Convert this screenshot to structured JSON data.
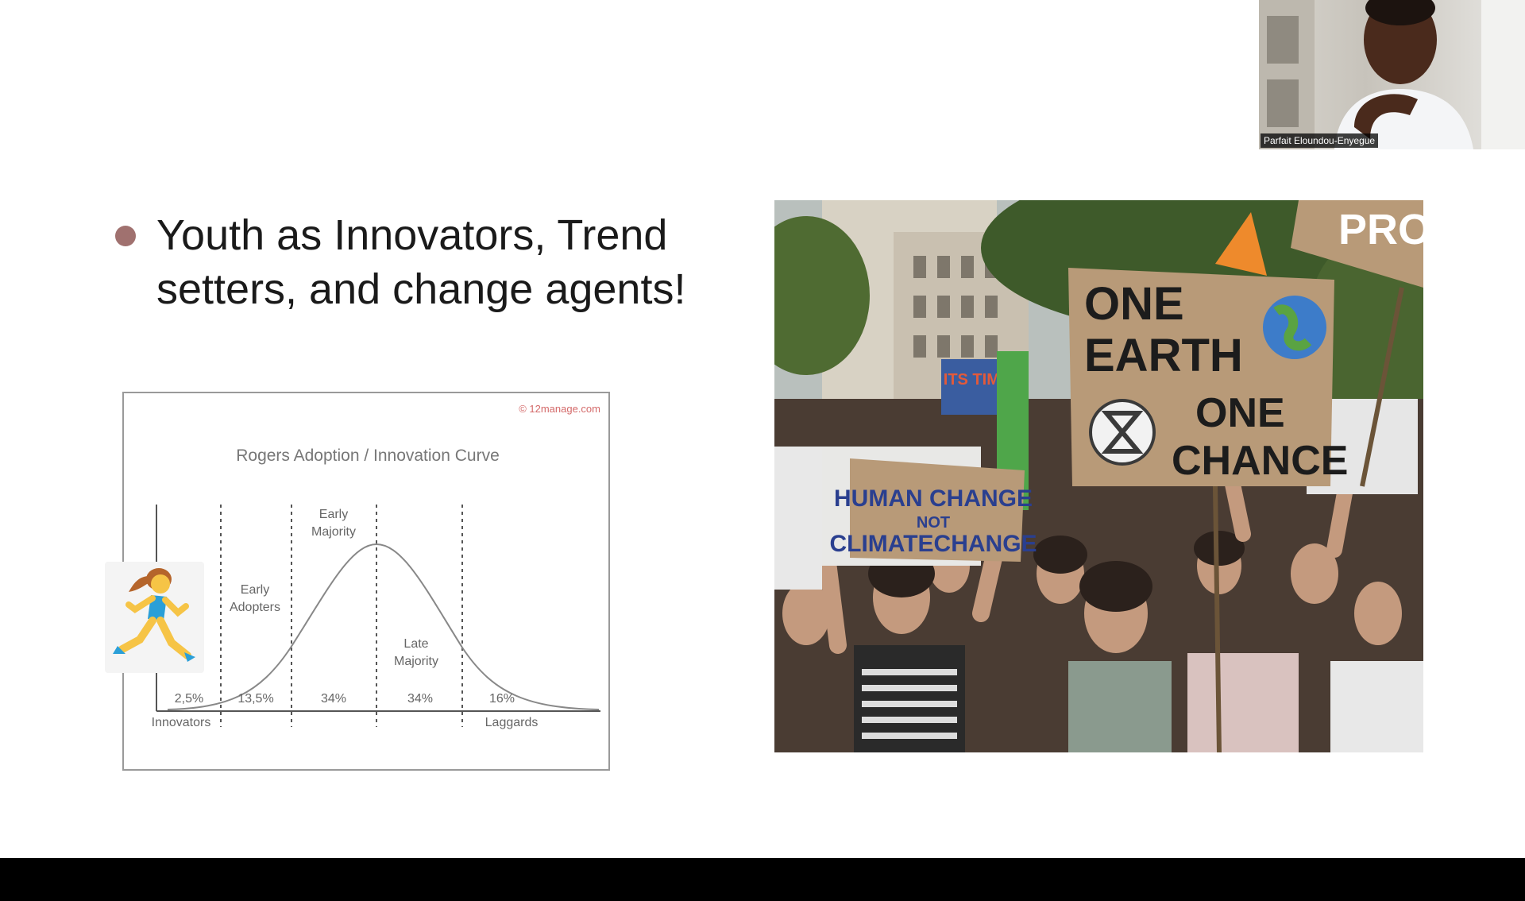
{
  "slide": {
    "bullet_text": "Youth as Innovators, Trend setters, and change agents!"
  },
  "chart": {
    "credit": "© 12manage.com",
    "title": "Rogers Adoption / Innovation Curve",
    "segments": [
      {
        "name": "Innovators",
        "percent": "2,5%"
      },
      {
        "name": "Early Adopters",
        "percent": "13,5%"
      },
      {
        "name": "Early Majority",
        "percent": "34%"
      },
      {
        "name": "Late Majority",
        "percent": "34%"
      },
      {
        "name": "Laggards",
        "percent": "16%"
      }
    ],
    "labels": {
      "early_adopters_1": "Early",
      "early_adopters_2": "Adopters",
      "early_majority_1": "Early",
      "early_majority_2": "Majority",
      "late_majority_1": "Late",
      "late_majority_2": "Majority",
      "innovators": "Innovators",
      "laggards": "Laggards"
    },
    "runner_icon": "woman-running-icon"
  },
  "photo": {
    "signs": {
      "one_earth_1": "ONE",
      "one_earth_2": "EARTH",
      "one_chance_1": "ONE",
      "one_chance_2": "CHANCE",
      "human_1": "HUMAN CHANGE",
      "human_2": "NOT",
      "human_3": "CLIMATECHANGE",
      "its_time": "ITS TIME",
      "pro": "PRO"
    },
    "icons": [
      "earth-icon",
      "extinction-rebellion-icon"
    ]
  },
  "webcam": {
    "participant_name": "Parfait Eloundou-Enyegue"
  },
  "colors": {
    "bullet": "#a0716f",
    "cardboard": "#b89a78",
    "sign_text": "#1c1c1c",
    "human_sign_text": "#2a3f8f"
  }
}
